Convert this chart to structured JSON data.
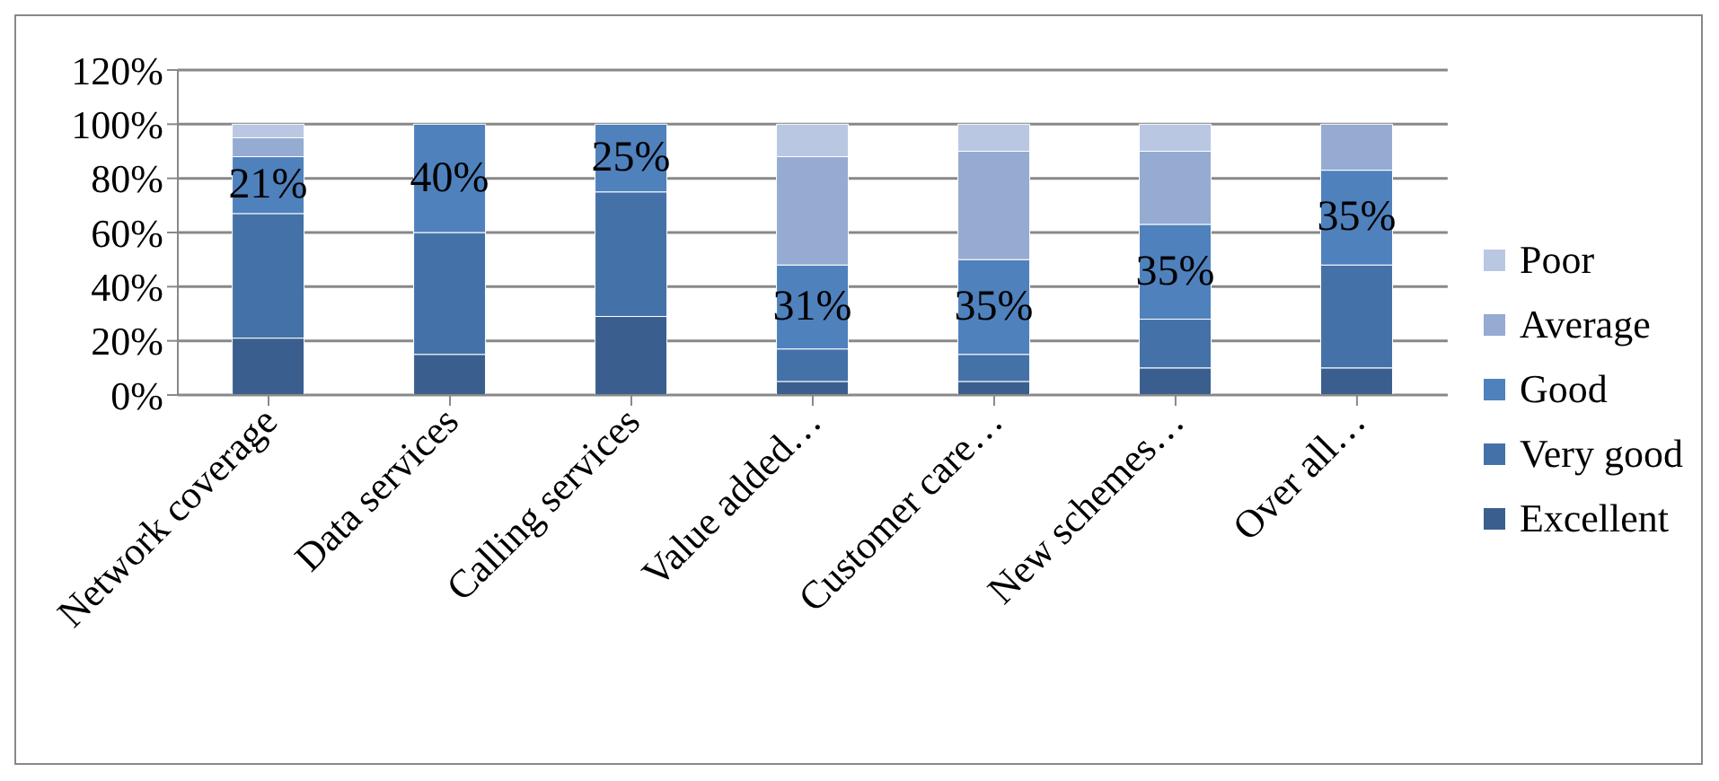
{
  "chart_data": {
    "type": "bar",
    "stacked": true,
    "categories": [
      "Network coverage",
      "Data services",
      "Calling services",
      "Value added…",
      "Customer care…",
      "New schemes…",
      "Over all…"
    ],
    "series": [
      {
        "name": "Excellent",
        "color": "#3a5f8f",
        "values": [
          21,
          15,
          29,
          5,
          5,
          10,
          10
        ]
      },
      {
        "name": "Very good",
        "color": "#4472a8",
        "values": [
          46,
          45,
          46,
          12,
          10,
          18,
          38
        ]
      },
      {
        "name": "Good",
        "color": "#4f81bd",
        "values": [
          21,
          40,
          25,
          31,
          35,
          35,
          35
        ],
        "value_labels": [
          "21%",
          "40%",
          "25%",
          "31%",
          "35%",
          "35%",
          "35%"
        ]
      },
      {
        "name": "Average",
        "color": "#95abd2",
        "values": [
          7,
          0,
          0,
          40,
          40,
          27,
          17
        ]
      },
      {
        "name": "Poor",
        "color": "#b9c7e2",
        "values": [
          5,
          0,
          0,
          12,
          10,
          10,
          0
        ]
      }
    ],
    "ylim": [
      0,
      120
    ],
    "yticks": [
      {
        "value": 0,
        "label": "0%"
      },
      {
        "value": 20,
        "label": "20%"
      },
      {
        "value": 40,
        "label": "40%"
      },
      {
        "value": 60,
        "label": "60%"
      },
      {
        "value": 80,
        "label": "80%"
      },
      {
        "value": 100,
        "label": "100%"
      },
      {
        "value": 120,
        "label": "120%"
      }
    ],
    "grid": "y",
    "legend": "right"
  }
}
